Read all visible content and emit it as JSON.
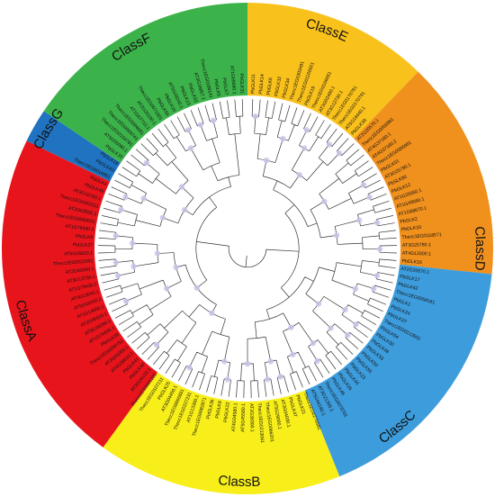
{
  "figure": {
    "type": "circular-phylogenetic-tree",
    "ring_colors": {
      "ClassA": "#e8141c",
      "ClassB": "#f7ee1a",
      "ClassC": "#3d9cdc",
      "ClassD": "#f0901d",
      "ClassE": "#f9c11b",
      "ClassF": "#3cb34a",
      "ClassG": "#1f73c0"
    },
    "classes": [
      {
        "name": "ClassE"
      },
      {
        "name": "ClassD"
      },
      {
        "name": "ClassC"
      },
      {
        "name": "ClassB"
      },
      {
        "name": "ClassA"
      },
      {
        "name": "ClassG"
      },
      {
        "name": "ClassF"
      }
    ],
    "leaves": [
      "PbGLK11",
      "PbGLK14",
      "PbGLK6",
      "PbGLK32",
      "PbGLK34",
      "Thecc1EG0303481",
      "Thecc1EG01166661",
      "PbGLK19",
      "Thecc1EG0166661",
      "AT3G02400.1",
      "AT3G12730.1",
      "Thecc1EG0170781",
      "Thecc1EG0170791",
      "AT5G16440.1",
      "PbGLK39",
      "AT2G20570.1",
      "Thecc1EG0056981",
      "AT4G37180.1",
      "AT4G37180.2",
      "Thecc1EG0006981",
      "PbGLK51",
      "AT3G25790.1",
      "PbSLK90",
      "PbGLK12",
      "AT1G25550.1",
      "AT1G49560.1",
      "AT1G68670.1",
      "PbGLK2",
      "PbGLK33",
      "Thecc1EG0118571",
      "AT3G25790.1",
      "AT4G13300.1",
      "PbGLK16",
      "AT2G20570.1",
      "PbGLK17",
      "PbGLK42",
      "Thecc1EG0058181",
      "PbGLK1",
      "PbGLK24",
      "PbGLK37",
      "Thecc1EG0213502",
      "PbGLK54",
      "PbGLK30",
      "PbGLK48",
      "PbGLK53",
      "PbGLK50",
      "PbGLK55",
      "PbGLK23",
      "PbGLK45",
      "PbGLK26",
      "PbGLK46",
      "Thecc1EG0078781",
      "AT3G21285.1",
      "AT5G44190.1",
      "Thecc1EG0276581",
      "PbGLK21",
      "PbGLK47",
      "AT3G04030.1",
      "AT5G29000.1",
      "Thecc1EG0066201",
      "Thecc1EG0213061",
      "AT2G38300.1",
      "AT5G45580.1",
      "AT4G04580.1",
      "PbGLK22",
      "PbGLK8",
      "PbGLK36",
      "Thecc1EG0082871",
      "AT1G13300.1",
      "Thecc1EG0227231",
      "Thecc1EG0066881",
      "AT3G04450.1",
      "PbGLK25",
      "Thecc1EG0107211",
      "Thecc1EG0001231",
      "AT3G24120.1",
      "PbGLK40",
      "PbGLK41",
      "AT4G28610.1",
      "AT2G01060.1",
      "Thecc1EG0284751",
      "PbGLK20",
      "AT1G79430.1",
      "AT5G18240.1",
      "AT2G06020.1",
      "AT1G14600.1",
      "AT5G18240.2",
      "AT3G13040.1",
      "AT1G79430.2",
      "AT3G12730.1",
      "AT2G40260.1",
      "Thecc1EG0021001",
      "AT5G16820.1",
      "PbGLK27",
      "PbGLK9",
      "AT1G79430.3",
      "Thecc1EG0060631",
      "AT2G03500.1",
      "Thecc1EG0062511",
      "AT3G10760.1",
      "PbGLK49",
      "PbGLK4",
      "Thecc1EG0014851",
      "PbGLK43",
      "PbGLK18",
      "PbGLK10",
      "AT5G05090.1",
      "Thecc1EG0154781",
      "Thecc1EG0009741",
      "Thecc1EG0094681",
      "AT1G67710.1",
      "AT2G25180.1",
      "Thecc1EG0071801",
      "PbGLK56",
      "PbGLK15",
      "AT5G49240.1",
      "PbGLK13",
      "PbGLK52",
      "AT3G16857.1",
      "Thecc1EG0188141",
      "PbGLK5",
      "PbGLK7",
      "AT1G69690.1",
      "PbGLK31"
    ]
  }
}
